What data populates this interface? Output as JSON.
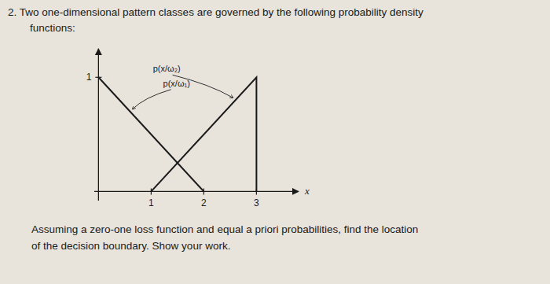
{
  "chart_data": {
    "type": "line",
    "title": "2.  Two one-dimensional pattern classes are governed by the following probability density",
    "subtitle": "functions:",
    "annotations": [
      "Assuming a zero-one loss function and equal a priori probabilities, find the location",
      "of the decision boundary. Show your work."
    ],
    "xlabel": "x",
    "series": [
      {
        "name": "p(x/ω₁)",
        "color": "#1a1a1a",
        "x": [
          0,
          2
        ],
        "values": [
          1,
          0
        ]
      },
      {
        "name": "p(x/ω₂)",
        "color": "#1a1a1a",
        "x": [
          1,
          3,
          3
        ],
        "values": [
          0,
          1,
          0
        ]
      }
    ],
    "xlim": [
      -0.08,
      3.8
    ],
    "xticks": [
      1,
      2,
      3
    ],
    "ylim": [
      -0.08,
      1.25
    ],
    "yticks": [
      1
    ],
    "grid": false
  }
}
